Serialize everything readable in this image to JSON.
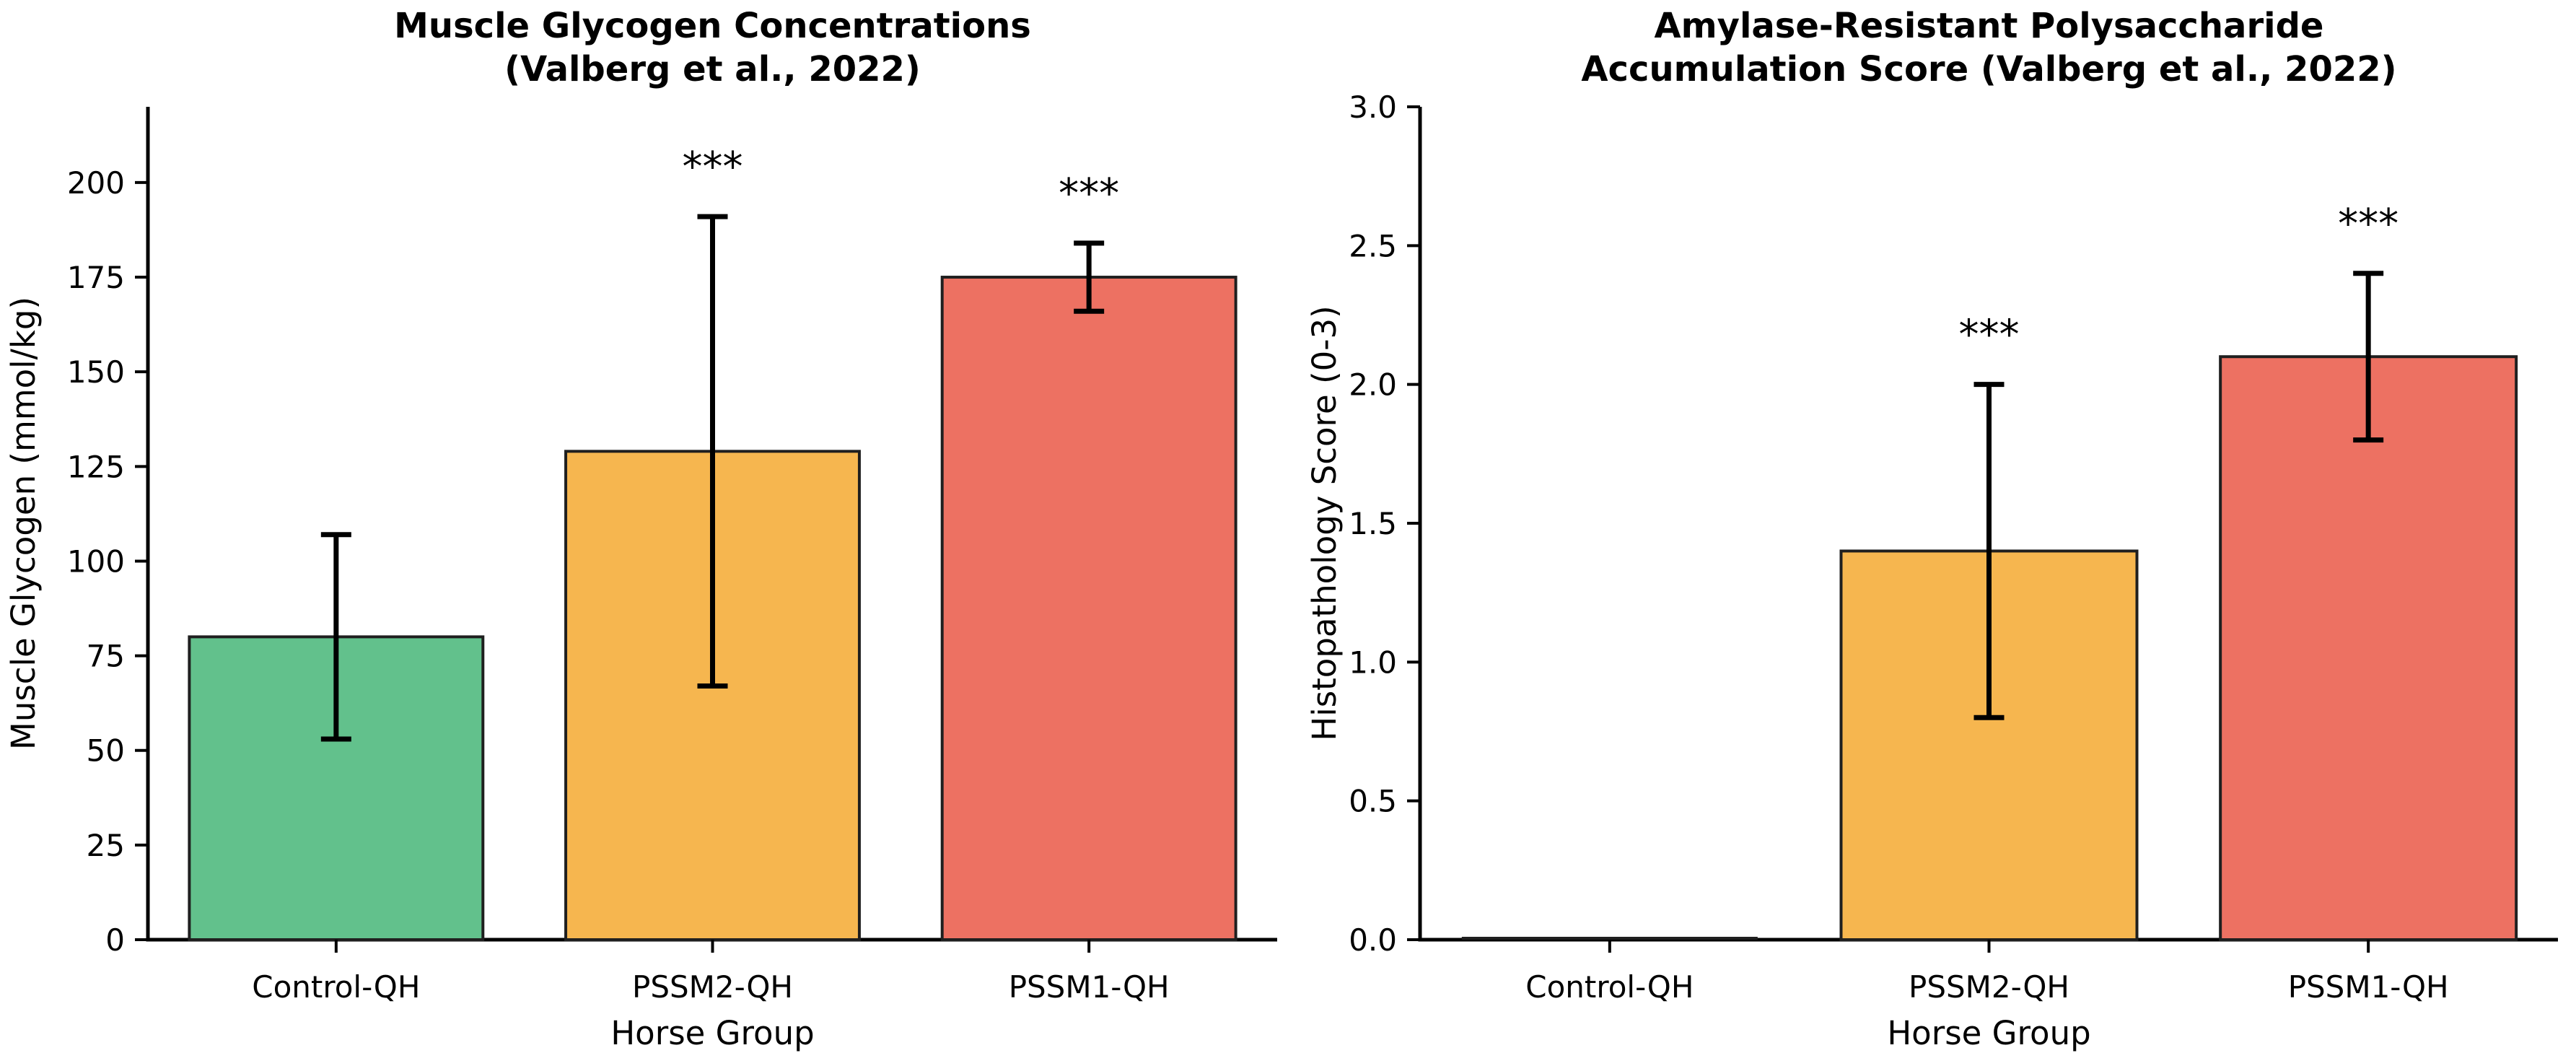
{
  "figure": {
    "background": "#ffffff",
    "text_color": "#000000",
    "axis_color": "#000000"
  },
  "chart_data": [
    {
      "type": "bar",
      "title_lines": [
        "Muscle Glycogen Concentrations",
        "(Valberg et al., 2022)"
      ],
      "xlabel": "Horse Group",
      "ylabel": "Muscle Glycogen (mmol/kg)",
      "categories": [
        "Control-QH",
        "PSSM2-QH",
        "PSSM1-QH"
      ],
      "values": [
        80,
        129,
        175
      ],
      "errors": [
        27,
        62,
        9
      ],
      "error_ranges": [
        [
          53,
          107
        ],
        [
          67,
          191
        ],
        [
          166,
          184
        ]
      ],
      "significance": [
        "",
        "***",
        "***"
      ],
      "bar_colors": [
        "#62C18C",
        "#F6B64F",
        "#ED7162"
      ],
      "bar_edge_color": "#1f1f1f",
      "ylim": [
        0,
        220
      ],
      "yticks": [
        0,
        25,
        50,
        75,
        100,
        125,
        150,
        175,
        200
      ],
      "ytick_labels": [
        "0",
        "25",
        "50",
        "75",
        "100",
        "125",
        "150",
        "175",
        "200"
      ],
      "grid": false,
      "legend": false
    },
    {
      "type": "bar",
      "title_lines": [
        "Amylase-Resistant Polysaccharide",
        "Accumulation Score (Valberg et al., 2022)"
      ],
      "xlabel": "Horse Group",
      "ylabel": "Histopathology Score (0-3)",
      "categories": [
        "Control-QH",
        "PSSM2-QH",
        "PSSM1-QH"
      ],
      "values": [
        0,
        1.4,
        2.1
      ],
      "errors": [
        0,
        0.6,
        0.3
      ],
      "error_ranges": [
        [
          0,
          0
        ],
        [
          0.8,
          2.0
        ],
        [
          1.8,
          2.4
        ]
      ],
      "significance": [
        "",
        "***",
        "***"
      ],
      "bar_colors": [
        "#62C18C",
        "#F6B64F",
        "#ED7162"
      ],
      "bar_edge_color": "#1f1f1f",
      "ylim": [
        0,
        3
      ],
      "yticks": [
        0,
        0.5,
        1,
        1.5,
        2,
        2.5,
        3
      ],
      "ytick_labels": [
        "0.0",
        "0.5",
        "1.0",
        "1.5",
        "2.0",
        "2.5",
        "3.0"
      ],
      "grid": false,
      "legend": false
    }
  ]
}
